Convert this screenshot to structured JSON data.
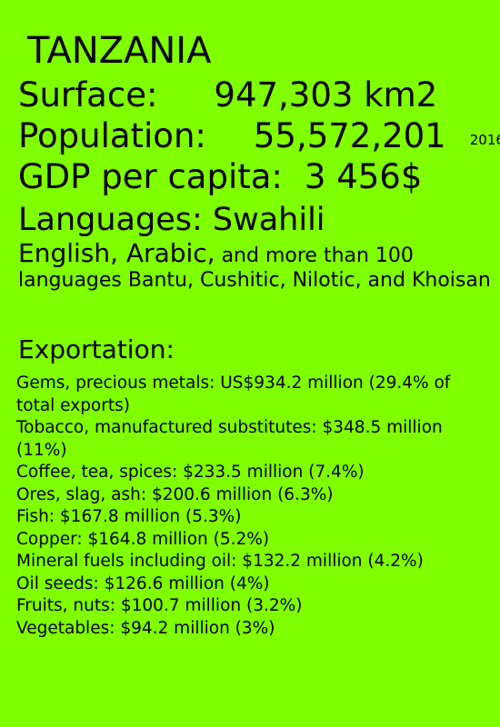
{
  "country": "TANZANIA",
  "surface": {
    "label": "Surface:",
    "value": "947,303 km2"
  },
  "population": {
    "label": "Population:",
    "value": "55,572,201",
    "year": "2016"
  },
  "gdp": {
    "label": "GDP per capita:",
    "value": "3 456$"
  },
  "languages": {
    "label": "Languages: Swahili",
    "secondary": "English, Arabic,",
    "more": "and more than 100 languages  Bantu, Cushitic, Nilotic, and Khoisan"
  },
  "exportation": {
    "heading": "Exportation:",
    "items": [
      "Gems, precious metals: US$934.2 million (29.4% of total exports)",
      "Tobacco, manufactured substitutes: $348.5 million (11%)",
      "Coffee, tea, spices: $233.5 million (7.4%)",
      "Ores, slag, ash: $200.6 million (6.3%)",
      "Fish: $167.8 million (5.3%)",
      "Copper: $164.8 million (5.2%)",
      "Mineral fuels including oil: $132.2 million (4.2%)",
      "Oil seeds: $126.6 million (4%)",
      "Fruits, nuts: $100.7 million (3.2%)",
      "Vegetables: $94.2 million (3%)"
    ]
  },
  "colors": {
    "background": "#7fff00",
    "text": "#000000"
  }
}
